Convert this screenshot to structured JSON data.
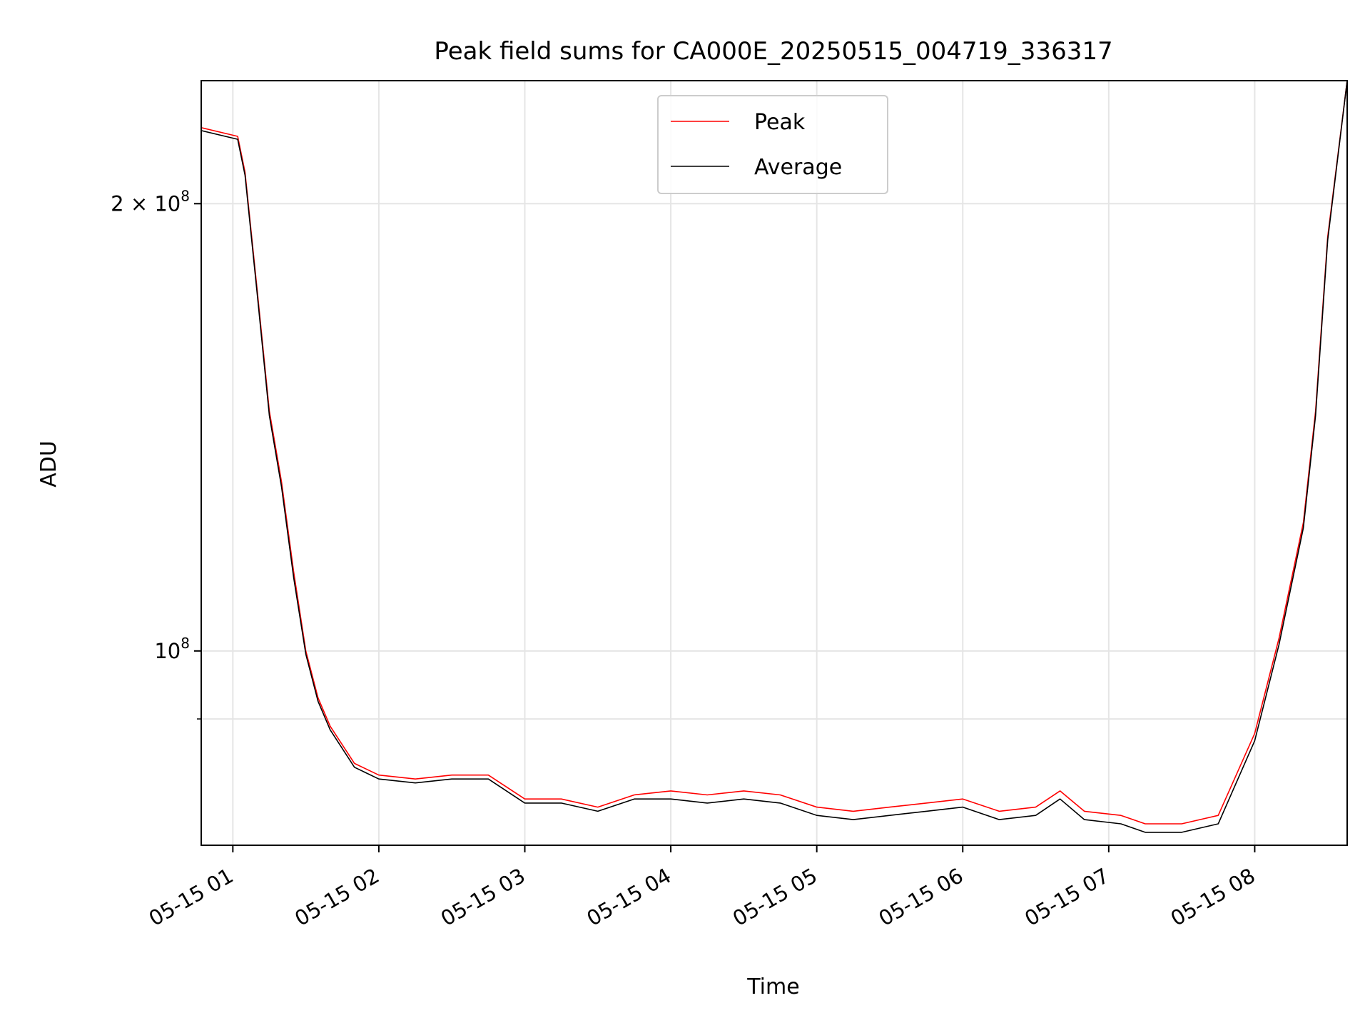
{
  "chart_data": {
    "type": "line",
    "title": "Peak field sums for CA000E_20250515_004719_336317",
    "xlabel": "Time",
    "ylabel": "ADU",
    "y_scale": "log",
    "grid": true,
    "legend_position": "top-center",
    "x_range": [
      "05-15 00:47",
      "05-15 08:38"
    ],
    "ylim": [
      74000000.0,
      242000000.0
    ],
    "x_ticks": [
      "05-15 01",
      "05-15 02",
      "05-15 03",
      "05-15 04",
      "05-15 05",
      "05-15 06",
      "05-15 07",
      "05-15 08"
    ],
    "y_ticks": [
      {
        "value": 200000000.0,
        "label_base": "2 × 10",
        "label_exp": "8"
      },
      {
        "value": 100000000.0,
        "label_base": "10",
        "label_exp": "8"
      }
    ],
    "y_minor_ticks": [
      90000000.0
    ],
    "series": [
      {
        "name": "Peak",
        "color": "#ff0000",
        "x": [
          "00:47",
          "01:02",
          "01:05",
          "01:10",
          "01:15",
          "01:20",
          "01:25",
          "01:30",
          "01:35",
          "01:40",
          "01:50",
          "02:00",
          "02:15",
          "02:30",
          "02:45",
          "03:00",
          "03:15",
          "03:30",
          "03:45",
          "04:00",
          "04:15",
          "04:30",
          "04:45",
          "05:00",
          "05:15",
          "05:30",
          "05:45",
          "06:00",
          "06:15",
          "06:30",
          "06:40",
          "06:50",
          "07:05",
          "07:15",
          "07:30",
          "07:45",
          "08:00",
          "08:10",
          "08:20",
          "08:25",
          "08:30",
          "08:38"
        ],
        "y": [
          225000000.0,
          222000000.0,
          210000000.0,
          175000000.0,
          145000000.0,
          130000000.0,
          113000000.0,
          100000000.0,
          93000000.0,
          89000000.0,
          84000000.0,
          82500000.0,
          82000000.0,
          82500000.0,
          82500000.0,
          79500000.0,
          79500000.0,
          78500000.0,
          80000000.0,
          80500000.0,
          80000000.0,
          80500000.0,
          80000000.0,
          78500000.0,
          78000000.0,
          78500000.0,
          79000000.0,
          79500000.0,
          78000000.0,
          78500000.0,
          80500000.0,
          78000000.0,
          77500000.0,
          76500000.0,
          76500000.0,
          77500000.0,
          88000000.0,
          102000000.0,
          122000000.0,
          145000000.0,
          190000000.0,
          242000000.0
        ]
      },
      {
        "name": "Average",
        "color": "#000000",
        "x": [
          "00:47",
          "01:02",
          "01:05",
          "01:10",
          "01:15",
          "01:20",
          "01:25",
          "01:30",
          "01:35",
          "01:40",
          "01:50",
          "02:00",
          "02:15",
          "02:30",
          "02:45",
          "03:00",
          "03:15",
          "03:30",
          "03:45",
          "04:00",
          "04:15",
          "04:30",
          "04:45",
          "05:00",
          "05:15",
          "05:30",
          "05:45",
          "06:00",
          "06:15",
          "06:30",
          "06:40",
          "06:50",
          "07:05",
          "07:15",
          "07:30",
          "07:45",
          "08:00",
          "08:10",
          "08:20",
          "08:25",
          "08:30",
          "08:38"
        ],
        "y": [
          224000000.0,
          221000000.0,
          209000000.0,
          174000000.0,
          144000000.0,
          129000000.0,
          112000000.0,
          99500000.0,
          92500000.0,
          88500000.0,
          83500000.0,
          82000000.0,
          81500000.0,
          82000000.0,
          82000000.0,
          79000000.0,
          79000000.0,
          78000000.0,
          79500000.0,
          79500000.0,
          79000000.0,
          79500000.0,
          79000000.0,
          77500000.0,
          77000000.0,
          77500000.0,
          78000000.0,
          78500000.0,
          77000000.0,
          77500000.0,
          79500000.0,
          77000000.0,
          76500000.0,
          75500000.0,
          75500000.0,
          76500000.0,
          87000000.0,
          101000000.0,
          121000000.0,
          144000000.0,
          189000000.0,
          242000000.0
        ]
      }
    ]
  }
}
